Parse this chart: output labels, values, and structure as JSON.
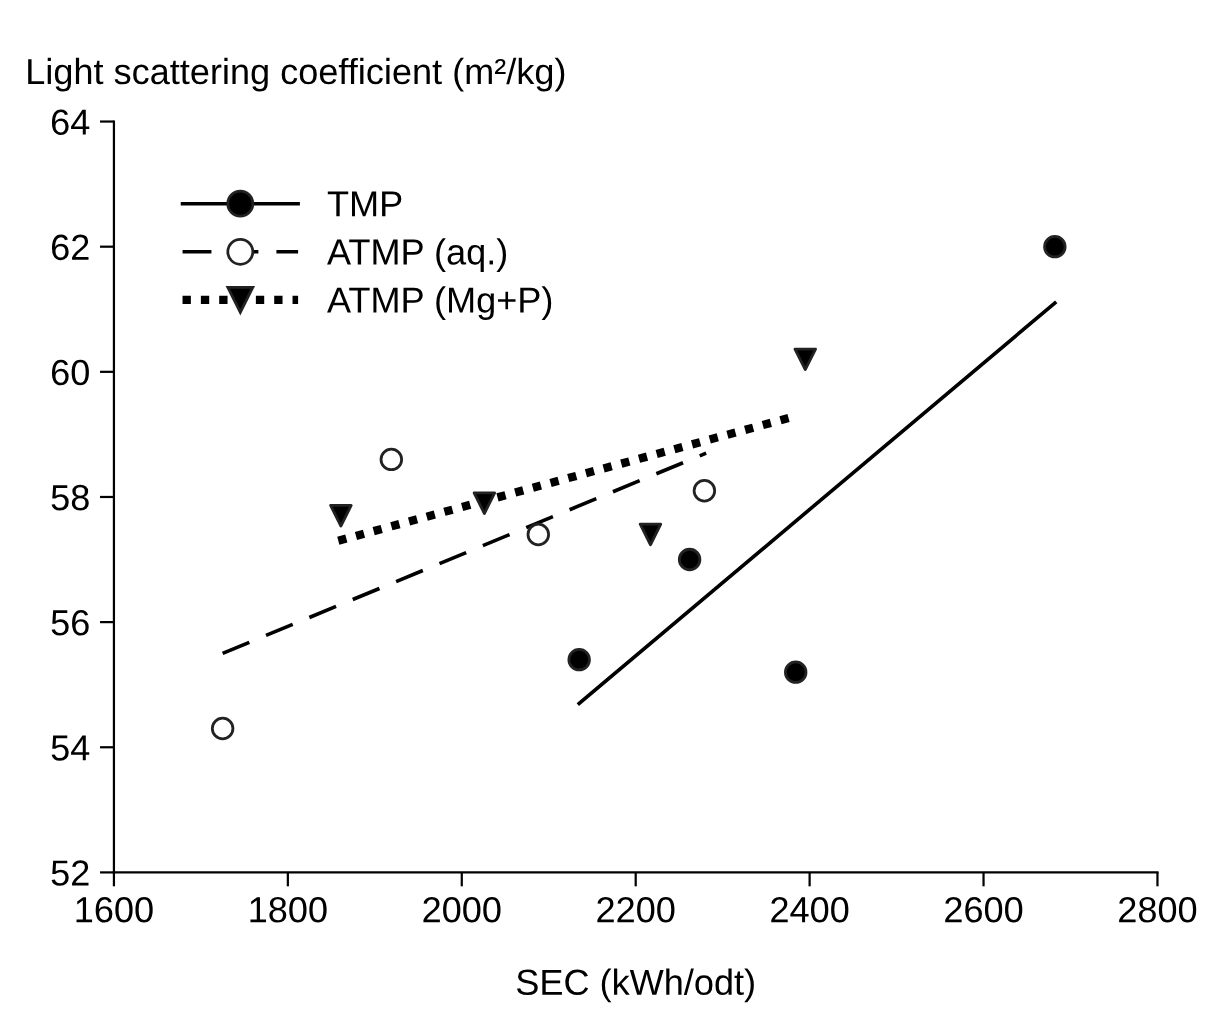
{
  "chart_data": {
    "type": "scatter",
    "xlabel": "SEC (kWh/odt)",
    "ylabel": "Light scattering coefficient (m²/kg)",
    "xlim": [
      1600,
      2800
    ],
    "xticks": [
      1600,
      1800,
      2000,
      2200,
      2400,
      2600,
      2800
    ],
    "ylim": [
      52,
      64
    ],
    "yticks": [
      52,
      54,
      56,
      58,
      60,
      62,
      64
    ],
    "grid": false,
    "legend": "top left",
    "series": [
      {
        "name": "TMP",
        "color": "#000000",
        "marker": "circle",
        "line_style": "solid",
        "x": [
          2135,
          2262,
          2384,
          2682
        ],
        "values": [
          55.4,
          57.0,
          55.2,
          62.0
        ]
      },
      {
        "name": "ATMP (aq.)",
        "color": "#ffffff",
        "marker": "circle",
        "line_style": "dashed",
        "x": [
          1725,
          1919,
          2088,
          2279
        ],
        "values": [
          54.3,
          58.6,
          57.4,
          58.1
        ]
      },
      {
        "name": "ATMP (Mg+P)",
        "color": "#000000",
        "marker": "triangle",
        "line_style": "dotted",
        "x": [
          1861,
          2026,
          2217,
          2395
        ],
        "values": [
          57.7,
          57.9,
          57.4,
          60.2
        ]
      },
      {
        "type": "line",
        "color": "#000000",
        "line_style": "solid",
        "x": [
          2135,
          2682
        ],
        "values": [
          54.7,
          61.1
        ]
      },
      {
        "type": "line",
        "color": "#000000",
        "line_style": "dashed",
        "x": [
          1725,
          2281
        ],
        "values": [
          55.5,
          58.7
        ]
      },
      {
        "type": "line",
        "color": "#000000",
        "line_style": "dotted",
        "x": [
          1858,
          2386
        ],
        "values": [
          57.3,
          59.3
        ]
      }
    ]
  }
}
